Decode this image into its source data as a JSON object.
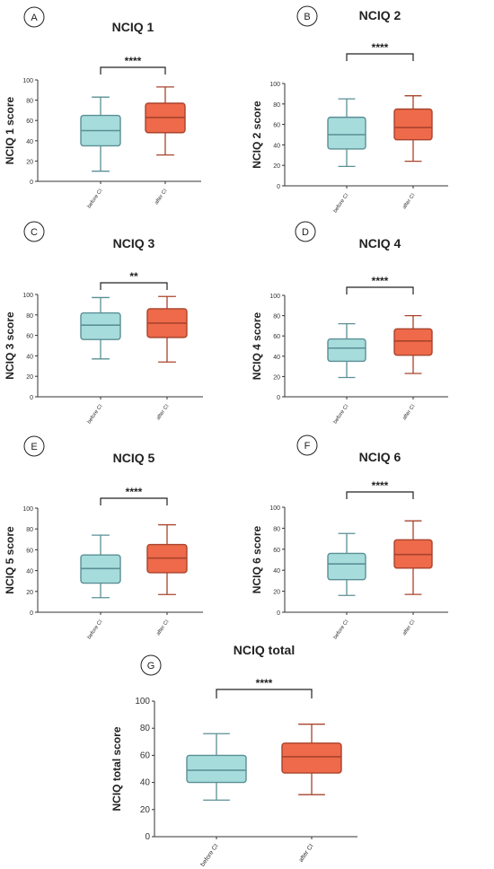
{
  "figure": {
    "groups": [
      "before CI",
      "after CI"
    ],
    "colors": {
      "before_fill": "#a7dcdc",
      "before_stroke": "#5a8f95",
      "after_fill": "#ee6a4a",
      "after_stroke": "#a8432c",
      "axis": "#333333"
    }
  },
  "chart_data": [
    {
      "type": "box",
      "panel": "A",
      "title": "NCIQ 1",
      "ylabel": "NCIQ 1 score",
      "ylim": [
        0,
        100
      ],
      "yticks": [
        0,
        20,
        40,
        60,
        80,
        100
      ],
      "categories": [
        "before CI",
        "after CI"
      ],
      "significance": "****",
      "boxes": [
        {
          "min": 10,
          "q1": 35,
          "median": 50,
          "q3": 65,
          "max": 83
        },
        {
          "min": 26,
          "q1": 48,
          "median": 63,
          "q3": 77,
          "max": 93
        }
      ]
    },
    {
      "type": "box",
      "panel": "B",
      "title": "NCIQ 2",
      "ylabel": "NCIQ 2 score",
      "ylim": [
        0,
        100
      ],
      "yticks": [
        0,
        20,
        40,
        60,
        80,
        100
      ],
      "categories": [
        "before CI",
        "after CI"
      ],
      "significance": "****",
      "boxes": [
        {
          "min": 19,
          "q1": 36,
          "median": 50,
          "q3": 67,
          "max": 85
        },
        {
          "min": 24,
          "q1": 45,
          "median": 57,
          "q3": 75,
          "max": 88
        }
      ]
    },
    {
      "type": "box",
      "panel": "C",
      "title": "NCIQ 3",
      "ylabel": "NCIQ 3 score",
      "ylim": [
        0,
        100
      ],
      "yticks": [
        0,
        20,
        40,
        60,
        80,
        100
      ],
      "categories": [
        "before CI",
        "after CI"
      ],
      "significance": "**",
      "boxes": [
        {
          "min": 37,
          "q1": 56,
          "median": 70,
          "q3": 82,
          "max": 97
        },
        {
          "min": 34,
          "q1": 58,
          "median": 72,
          "q3": 86,
          "max": 98
        }
      ]
    },
    {
      "type": "box",
      "panel": "D",
      "title": "NCIQ 4",
      "ylabel": "NCIQ 4 score",
      "ylim": [
        0,
        100
      ],
      "yticks": [
        0,
        20,
        40,
        60,
        80,
        100
      ],
      "categories": [
        "before CI",
        "after CI"
      ],
      "significance": "****",
      "boxes": [
        {
          "min": 19,
          "q1": 35,
          "median": 48,
          "q3": 57,
          "max": 72
        },
        {
          "min": 23,
          "q1": 41,
          "median": 55,
          "q3": 67,
          "max": 80
        }
      ]
    },
    {
      "type": "box",
      "panel": "E",
      "title": "NCIQ 5",
      "ylabel": "NCIQ 5 score",
      "ylim": [
        0,
        100
      ],
      "yticks": [
        0,
        20,
        40,
        60,
        80,
        100
      ],
      "categories": [
        "before CI",
        "after CI"
      ],
      "significance": "****",
      "boxes": [
        {
          "min": 14,
          "q1": 28,
          "median": 42,
          "q3": 55,
          "max": 74
        },
        {
          "min": 17,
          "q1": 38,
          "median": 52,
          "q3": 65,
          "max": 84
        }
      ]
    },
    {
      "type": "box",
      "panel": "F",
      "title": "NCIQ 6",
      "ylabel": "NCIQ 6 score",
      "ylim": [
        0,
        100
      ],
      "yticks": [
        0,
        20,
        40,
        60,
        80,
        100
      ],
      "categories": [
        "before CI",
        "after CI"
      ],
      "significance": "****",
      "boxes": [
        {
          "min": 16,
          "q1": 31,
          "median": 46,
          "q3": 56,
          "max": 75
        },
        {
          "min": 17,
          "q1": 42,
          "median": 55,
          "q3": 69,
          "max": 87
        }
      ]
    },
    {
      "type": "box",
      "panel": "G",
      "title": "NCIQ total",
      "ylabel": "NCIQ total score",
      "ylim": [
        0,
        100
      ],
      "yticks": [
        0,
        20,
        40,
        60,
        80,
        100
      ],
      "categories": [
        "before CI",
        "after CI"
      ],
      "significance": "****",
      "boxes": [
        {
          "min": 27,
          "q1": 40,
          "median": 49,
          "q3": 60,
          "max": 76
        },
        {
          "min": 31,
          "q1": 47,
          "median": 59,
          "q3": 69,
          "max": 83
        }
      ]
    }
  ]
}
